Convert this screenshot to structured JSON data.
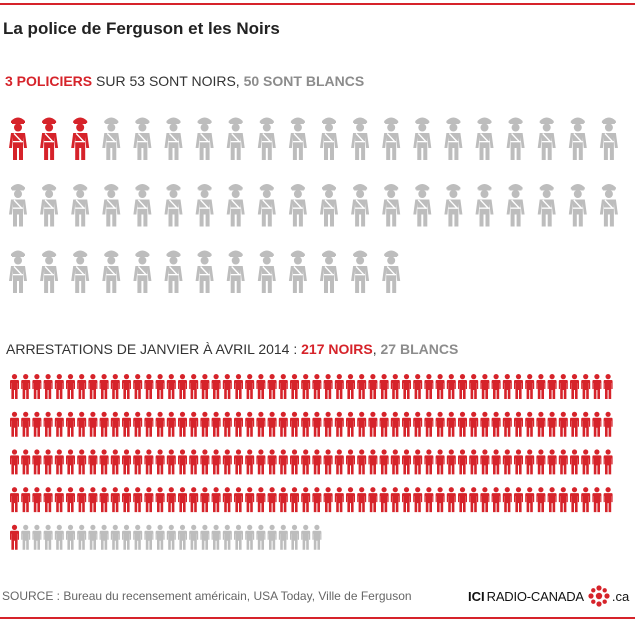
{
  "title": "La police de Ferguson et les Noirs",
  "police_caption": {
    "highlight": "3 POLICIERS",
    "middle": " SUR 53 SONT NOIRS, ",
    "grey": "50 SONT BLANCS"
  },
  "arrests_caption": {
    "prefix": "ARRESTATIONS DE JANVIER À AVRIL 2014 : ",
    "highlight": "217 NOIRS",
    "sep": ", ",
    "grey": "27 BLANCS"
  },
  "source": "SOURCE : Bureau du recensement américain, USA Today, Ville de Ferguson",
  "logo": {
    "ici": "ICI",
    "name": "RADIO-CANADA",
    "suffix": ".ca"
  },
  "colors": {
    "black": "#d6232a",
    "white": "#bdbdbd",
    "accent": "#d6232a"
  },
  "icons": {
    "police": "police-officer-icon",
    "person": "person-icon"
  },
  "chart_data": [
    {
      "type": "table",
      "series": [
        {
          "name": "3 POLICIERS",
          "values": [
            3
          ]
        },
        {
          "name": "50 SONT BLANCS",
          "values": [
            50
          ]
        }
      ],
      "per_row": 20
    },
    {
      "type": "table",
      "series": [
        {
          "name": "217 NOIRS",
          "values": [
            217
          ]
        },
        {
          "name": "27 BLANCS",
          "values": [
            27
          ]
        }
      ],
      "per_row": 54
    }
  ]
}
